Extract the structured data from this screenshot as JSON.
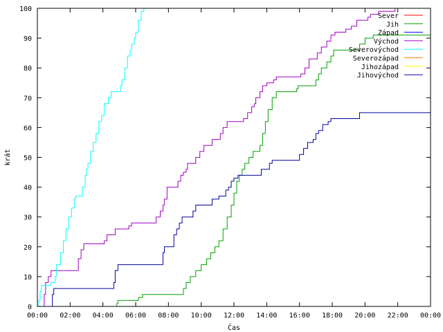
{
  "chart_data": {
    "type": "line",
    "title": "",
    "xlabel": "Čas",
    "ylabel": "krát",
    "ylim": [
      0,
      100
    ],
    "xlim": [
      "00:00",
      "24:00"
    ],
    "x_ticks": [
      "00:00",
      "02:00",
      "04:00",
      "06:00",
      "08:00",
      "10:00",
      "12:00",
      "14:00",
      "16:00",
      "18:00",
      "20:00",
      "22:00",
      "00:00"
    ],
    "y_ticks": [
      "0",
      "10",
      "20",
      "30",
      "40",
      "50",
      "60",
      "70",
      "80",
      "90",
      "100"
    ],
    "grid": false,
    "legend_position": "top-right",
    "step": true,
    "series": [
      {
        "name": "Sever",
        "color": "#ff0000",
        "points": []
      },
      {
        "name": "Jih",
        "color": "#00a000",
        "points": [
          [
            "04:49",
            0
          ],
          [
            "04:51",
            1
          ],
          [
            "04:55",
            2
          ],
          [
            "06:00",
            2
          ],
          [
            "06:10",
            3
          ],
          [
            "06:25",
            4
          ],
          [
            "08:50",
            4
          ],
          [
            "08:55",
            6
          ],
          [
            "09:05",
            8
          ],
          [
            "09:20",
            10
          ],
          [
            "09:40",
            12
          ],
          [
            "10:00",
            14
          ],
          [
            "10:20",
            16
          ],
          [
            "10:35",
            18
          ],
          [
            "10:50",
            20
          ],
          [
            "11:05",
            22
          ],
          [
            "11:20",
            26
          ],
          [
            "11:35",
            30
          ],
          [
            "11:50",
            34
          ],
          [
            "12:00",
            38
          ],
          [
            "12:10",
            42
          ],
          [
            "12:20",
            44
          ],
          [
            "12:30",
            46
          ],
          [
            "12:40",
            48
          ],
          [
            "12:55",
            50
          ],
          [
            "13:10",
            52
          ],
          [
            "13:30",
            52
          ],
          [
            "13:35",
            54
          ],
          [
            "13:45",
            58
          ],
          [
            "13:55",
            62
          ],
          [
            "14:05",
            66
          ],
          [
            "14:20",
            70
          ],
          [
            "14:35",
            72
          ],
          [
            "15:45",
            72
          ],
          [
            "15:50",
            73
          ],
          [
            "15:55",
            74
          ],
          [
            "16:55",
            74
          ],
          [
            "17:00",
            76
          ],
          [
            "17:10",
            78
          ],
          [
            "17:20",
            80
          ],
          [
            "17:40",
            82
          ],
          [
            "17:55",
            84
          ],
          [
            "18:05",
            86
          ],
          [
            "19:30",
            86
          ],
          [
            "19:40",
            88
          ],
          [
            "20:00",
            90
          ],
          [
            "20:30",
            91
          ],
          [
            "23:50",
            91
          ],
          [
            "24:00",
            93
          ]
        ]
      },
      {
        "name": "Západ",
        "color": "#0000ff",
        "points": []
      },
      {
        "name": "Východ",
        "color": "#a000c0",
        "points": [
          [
            "00:20",
            0
          ],
          [
            "00:25",
            4
          ],
          [
            "00:30",
            8
          ],
          [
            "00:40",
            10
          ],
          [
            "00:50",
            12
          ],
          [
            "02:20",
            12
          ],
          [
            "02:30",
            16
          ],
          [
            "02:40",
            19
          ],
          [
            "02:50",
            21
          ],
          [
            "03:40",
            21
          ],
          [
            "04:05",
            22
          ],
          [
            "04:15",
            24
          ],
          [
            "04:35",
            24
          ],
          [
            "04:45",
            26
          ],
          [
            "05:30",
            26
          ],
          [
            "05:35",
            27
          ],
          [
            "05:45",
            28
          ],
          [
            "07:05",
            28
          ],
          [
            "07:15",
            30
          ],
          [
            "07:30",
            32
          ],
          [
            "07:40",
            34
          ],
          [
            "07:45",
            36
          ],
          [
            "07:55",
            40
          ],
          [
            "08:30",
            40
          ],
          [
            "08:35",
            42
          ],
          [
            "08:45",
            44
          ],
          [
            "08:55",
            45
          ],
          [
            "09:05",
            46
          ],
          [
            "09:10",
            48
          ],
          [
            "09:30",
            48
          ],
          [
            "09:40",
            50
          ],
          [
            "09:55",
            52
          ],
          [
            "10:10",
            54
          ],
          [
            "10:30",
            54
          ],
          [
            "10:40",
            56
          ],
          [
            "11:00",
            56
          ],
          [
            "11:10",
            58
          ],
          [
            "11:20",
            60
          ],
          [
            "11:35",
            62
          ],
          [
            "12:30",
            62
          ],
          [
            "12:35",
            63
          ],
          [
            "12:50",
            65
          ],
          [
            "13:05",
            67
          ],
          [
            "13:15",
            68
          ],
          [
            "13:20",
            70
          ],
          [
            "13:35",
            72
          ],
          [
            "13:45",
            74
          ],
          [
            "14:00",
            75
          ],
          [
            "14:15",
            75
          ],
          [
            "14:25",
            76
          ],
          [
            "14:35",
            77
          ],
          [
            "15:55",
            77
          ],
          [
            "16:05",
            78
          ],
          [
            "16:20",
            80
          ],
          [
            "16:35",
            83
          ],
          [
            "16:55",
            83
          ],
          [
            "17:05",
            85
          ],
          [
            "17:20",
            87
          ],
          [
            "17:40",
            89
          ],
          [
            "17:55",
            91
          ],
          [
            "18:10",
            92
          ],
          [
            "18:40",
            92
          ],
          [
            "18:50",
            93
          ],
          [
            "19:10",
            94
          ],
          [
            "19:30",
            96
          ],
          [
            "20:00",
            96
          ],
          [
            "20:10",
            97
          ],
          [
            "20:20",
            98
          ],
          [
            "20:40",
            98
          ],
          [
            "20:50",
            99
          ],
          [
            "21:40",
            99
          ],
          [
            "21:50",
            100
          ]
        ]
      },
      {
        "name": "Severovýchod",
        "color": "#00ffff",
        "points": [
          [
            "00:00",
            0
          ],
          [
            "00:05",
            2
          ],
          [
            "00:10",
            5
          ],
          [
            "00:15",
            7
          ],
          [
            "00:40",
            7
          ],
          [
            "00:50",
            8
          ],
          [
            "01:05",
            10
          ],
          [
            "01:10",
            14
          ],
          [
            "01:25",
            18
          ],
          [
            "01:35",
            22
          ],
          [
            "01:45",
            26
          ],
          [
            "01:55",
            30
          ],
          [
            "02:05",
            33
          ],
          [
            "02:15",
            36
          ],
          [
            "02:20",
            37
          ],
          [
            "02:40",
            37
          ],
          [
            "02:45",
            40
          ],
          [
            "02:55",
            44
          ],
          [
            "03:00",
            46
          ],
          [
            "03:05",
            48
          ],
          [
            "03:15",
            52
          ],
          [
            "03:25",
            55
          ],
          [
            "03:35",
            58
          ],
          [
            "03:45",
            62
          ],
          [
            "03:55",
            64
          ],
          [
            "04:05",
            68
          ],
          [
            "04:20",
            70
          ],
          [
            "04:30",
            72
          ],
          [
            "04:55",
            72
          ],
          [
            "05:05",
            74
          ],
          [
            "05:10",
            76
          ],
          [
            "05:20",
            80
          ],
          [
            "05:30",
            84
          ],
          [
            "05:40",
            86
          ],
          [
            "05:45",
            88
          ],
          [
            "05:55",
            90
          ],
          [
            "06:00",
            92
          ],
          [
            "06:10",
            96
          ],
          [
            "06:20",
            99
          ],
          [
            "06:30",
            100
          ]
        ]
      },
      {
        "name": "Severozápad",
        "color": "#ff8000",
        "points": []
      },
      {
        "name": "Jihozápad",
        "color": "#ffff00",
        "points": []
      },
      {
        "name": "Jihovýchod",
        "color": "#0000a0",
        "points": [
          [
            "00:50",
            0
          ],
          [
            "00:55",
            4
          ],
          [
            "01:00",
            6
          ],
          [
            "04:35",
            6
          ],
          [
            "04:40",
            8
          ],
          [
            "04:45",
            12
          ],
          [
            "04:55",
            14
          ],
          [
            "07:35",
            14
          ],
          [
            "07:40",
            18
          ],
          [
            "07:45",
            20
          ],
          [
            "08:10",
            20
          ],
          [
            "08:20",
            24
          ],
          [
            "08:30",
            26
          ],
          [
            "08:40",
            28
          ],
          [
            "08:50",
            30
          ],
          [
            "09:25",
            30
          ],
          [
            "09:30",
            32
          ],
          [
            "09:40",
            34
          ],
          [
            "10:30",
            34
          ],
          [
            "10:40",
            36
          ],
          [
            "11:05",
            37
          ],
          [
            "11:25",
            37
          ],
          [
            "11:30",
            39
          ],
          [
            "11:40",
            40
          ],
          [
            "11:50",
            42
          ],
          [
            "12:00",
            43
          ],
          [
            "12:15",
            44
          ],
          [
            "13:35",
            44
          ],
          [
            "13:40",
            46
          ],
          [
            "14:10",
            48
          ],
          [
            "14:20",
            49
          ],
          [
            "15:50",
            49
          ],
          [
            "16:00",
            51
          ],
          [
            "16:15",
            53
          ],
          [
            "16:30",
            55
          ],
          [
            "16:50",
            56
          ],
          [
            "17:00",
            58
          ],
          [
            "17:10",
            59
          ],
          [
            "17:25",
            61
          ],
          [
            "17:45",
            62
          ],
          [
            "17:55",
            63
          ],
          [
            "19:30",
            63
          ],
          [
            "19:40",
            65
          ],
          [
            "24:00",
            65
          ]
        ]
      }
    ]
  }
}
